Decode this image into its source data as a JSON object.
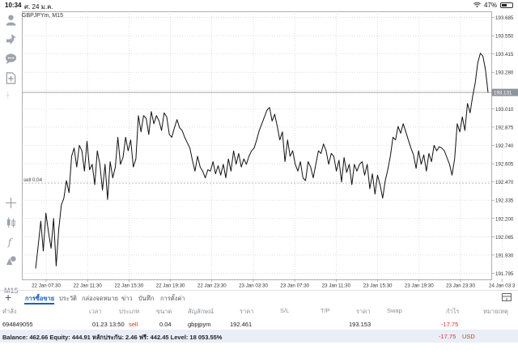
{
  "status_bar": {
    "time": "10:34",
    "date": "ศ. 24 ม.ค.",
    "battery": "47%",
    "battery_level": 0.47
  },
  "chart": {
    "symbol": "GBPJPYm, M15",
    "current_price": "193.131",
    "order_label": "sell 0.04",
    "colors": {
      "line": "#111111",
      "grid": "#c8c8c8",
      "current_price_box": "#8e949c"
    }
  },
  "toolbar": {
    "timeframe": "M15"
  },
  "chart_data": {
    "type": "line",
    "y_ticks": [
      "193.685",
      "193.550",
      "193.415",
      "193.280",
      "193.145",
      "193.010",
      "192.875",
      "192.740",
      "192.605",
      "192.470",
      "192.335",
      "192.200",
      "192.065",
      "191.930",
      "191.795"
    ],
    "x_ticks": [
      "22 Jan 07:30",
      "22 Jan 11:30",
      "22 Jan 15:30",
      "22 Jan 19:30",
      "22 Jan 23:30",
      "23 Jan 03:30",
      "23 Jan 07:30",
      "23 Jan 11:30",
      "23 Jan 15:30",
      "23 Jan 19:30",
      "23 Jan 23:30",
      "24 Jan 03:3"
    ],
    "ylim": [
      191.75,
      193.73
    ],
    "order_line_price": 192.461,
    "current_price": 193.131,
    "series": [
      {
        "values": [
          191.83,
          192.0,
          192.18,
          191.96,
          192.24,
          192.1,
          191.98,
          192.2,
          191.85,
          192.12,
          192.3,
          192.35,
          192.48,
          192.39,
          192.66,
          192.72,
          192.58,
          192.74,
          192.7,
          192.55,
          192.77,
          192.56,
          192.6,
          192.45,
          192.7,
          192.6,
          192.41,
          192.6,
          192.34,
          192.62,
          192.5,
          192.58,
          192.8,
          192.6,
          192.65,
          192.8,
          192.7,
          192.78,
          192.58,
          192.64,
          192.96,
          192.84,
          192.96,
          192.94,
          192.82,
          192.99,
          192.9,
          192.96,
          192.92,
          192.85,
          192.98,
          192.95,
          192.82,
          192.8,
          192.87,
          192.93,
          192.87,
          192.85,
          192.8,
          192.76,
          192.72,
          192.63,
          192.55,
          192.66,
          192.58,
          192.55,
          192.5,
          192.56,
          192.55,
          192.62,
          192.53,
          192.59,
          192.52,
          192.6,
          192.5,
          192.64,
          192.55,
          192.7,
          192.6,
          192.68,
          192.58,
          192.64,
          192.6,
          192.66,
          192.7,
          192.72,
          192.78,
          192.85,
          192.9,
          192.95,
          193.0,
          193.02,
          192.92,
          192.97,
          192.88,
          192.78,
          192.84,
          192.62,
          192.78,
          192.66,
          192.7,
          192.6,
          192.55,
          192.62,
          192.5,
          192.48,
          192.62,
          192.58,
          192.5,
          192.6,
          192.7,
          192.68,
          192.75,
          192.7,
          192.6,
          192.68,
          192.66,
          192.55,
          192.63,
          192.47,
          192.65,
          192.54,
          192.6,
          192.45,
          192.6,
          192.55,
          192.6,
          192.62,
          192.52,
          192.6,
          192.42,
          192.53,
          192.38,
          192.52,
          192.45,
          192.35,
          192.48,
          192.56,
          192.66,
          192.8,
          192.78,
          192.88,
          192.83,
          192.9,
          192.84,
          192.78,
          192.72,
          192.67,
          192.57,
          192.7,
          192.6,
          192.67,
          192.55,
          192.68,
          192.62,
          192.74,
          192.7,
          192.73,
          192.72,
          192.7,
          192.65,
          192.6,
          192.52,
          192.64,
          192.9,
          192.84,
          192.95,
          192.85,
          193.05,
          192.98,
          193.1,
          193.2,
          193.35,
          193.42,
          193.4,
          193.3,
          193.13
        ]
      }
    ]
  },
  "tabs": {
    "items": [
      {
        "label": "การซื้อขาย"
      },
      {
        "label": "ประวัติ"
      },
      {
        "label": "กล่องจดหมาย"
      },
      {
        "label": "ข่าว"
      },
      {
        "label": "บันทึก"
      },
      {
        "label": "การตั้งค่า"
      }
    ]
  },
  "trade_table": {
    "headers": [
      "คำสั่ง",
      "เวลา",
      "ประเภท",
      "ขนาด",
      "สัญลักษณ์",
      "ราคา",
      "S/L",
      "T/P",
      "ราคา",
      "Swap",
      "กำไร",
      "หมายเหตุ"
    ],
    "row": {
      "order": "694849055",
      "time": "01.23 13:50",
      "type": "sell",
      "size": "0.04",
      "symbol": "gbpjpym",
      "open_price": "192.461",
      "sl": "",
      "tp": "",
      "current_price": "193.153",
      "swap": "",
      "profit": "-17.75",
      "comment": ""
    }
  },
  "balance": {
    "text": "Balance: 462.66 Equity: 444.91 หลักประกัน: 2.46 ฟรี: 442.45 Level: 18 053.55%",
    "profit": "-17.75",
    "currency": "USD"
  }
}
